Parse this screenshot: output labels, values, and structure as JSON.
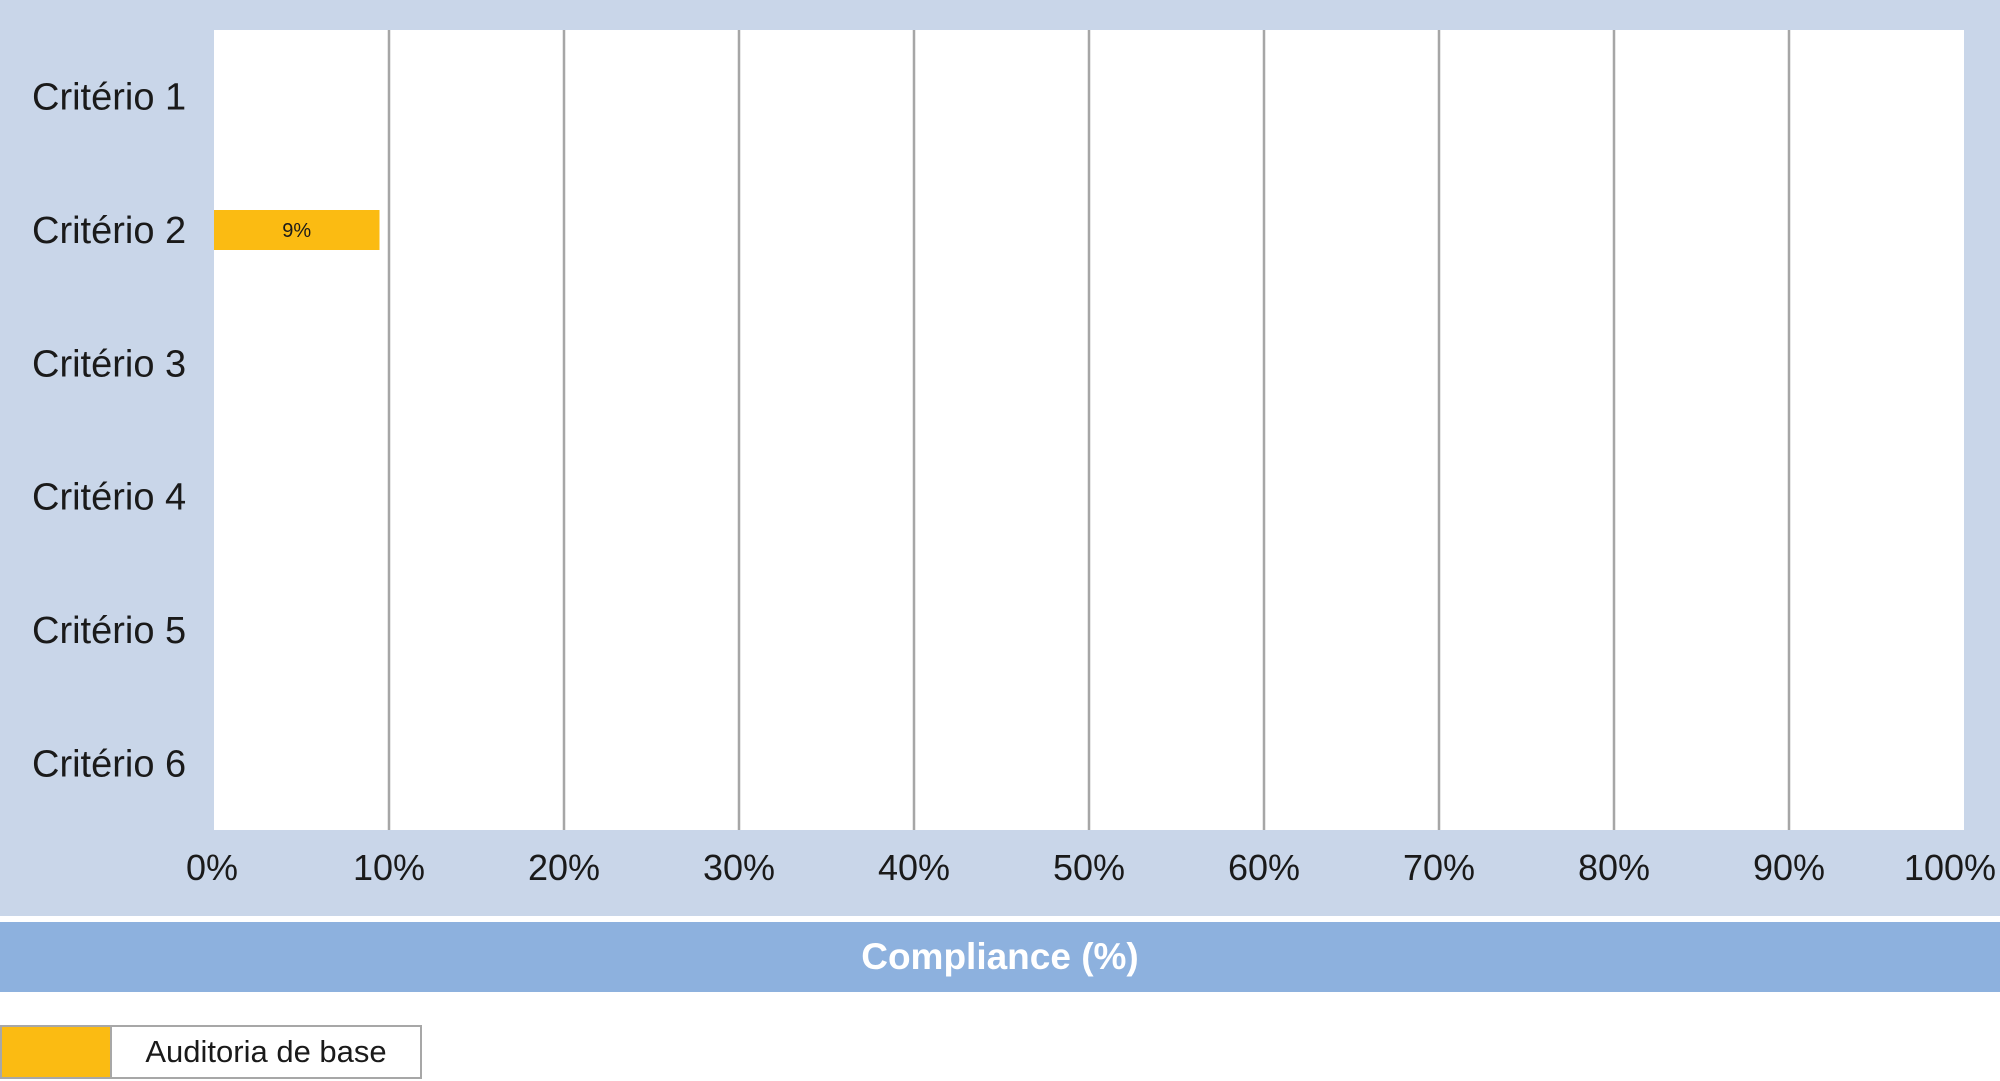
{
  "chart_data": {
    "type": "bar",
    "orientation": "horizontal",
    "categories": [
      "Critério 1",
      "Critério 2",
      "Critério 3",
      "Critério 4",
      "Critério 5",
      "Critério 6"
    ],
    "series": [
      {
        "name": "Auditoria de base",
        "values": [
          null,
          9,
          null,
          null,
          null,
          null
        ],
        "color": "#fbbb12"
      }
    ],
    "data_labels": [
      null,
      "9%",
      null,
      null,
      null,
      null
    ],
    "xlabel": "Compliance (%)",
    "xlim": [
      0,
      100
    ],
    "x_ticks": [
      0,
      10,
      20,
      30,
      40,
      50,
      60,
      70,
      80,
      90,
      100
    ],
    "x_tick_labels": [
      "0%",
      "10%",
      "20%",
      "30%",
      "40%",
      "50%",
      "60%",
      "70%",
      "80%",
      "90%",
      "100%"
    ],
    "grid": "vertical",
    "legend_position": "bottom-left"
  },
  "colors": {
    "panel_background": "#c9d6e9",
    "plot_background": "#ffffff",
    "axis_label_band": "#8db1de",
    "gridline": "#a6a6a6",
    "bar": "#fbbb12"
  },
  "legend": {
    "items": [
      {
        "label": "Auditoria de base",
        "color": "#fbbb12"
      }
    ]
  }
}
